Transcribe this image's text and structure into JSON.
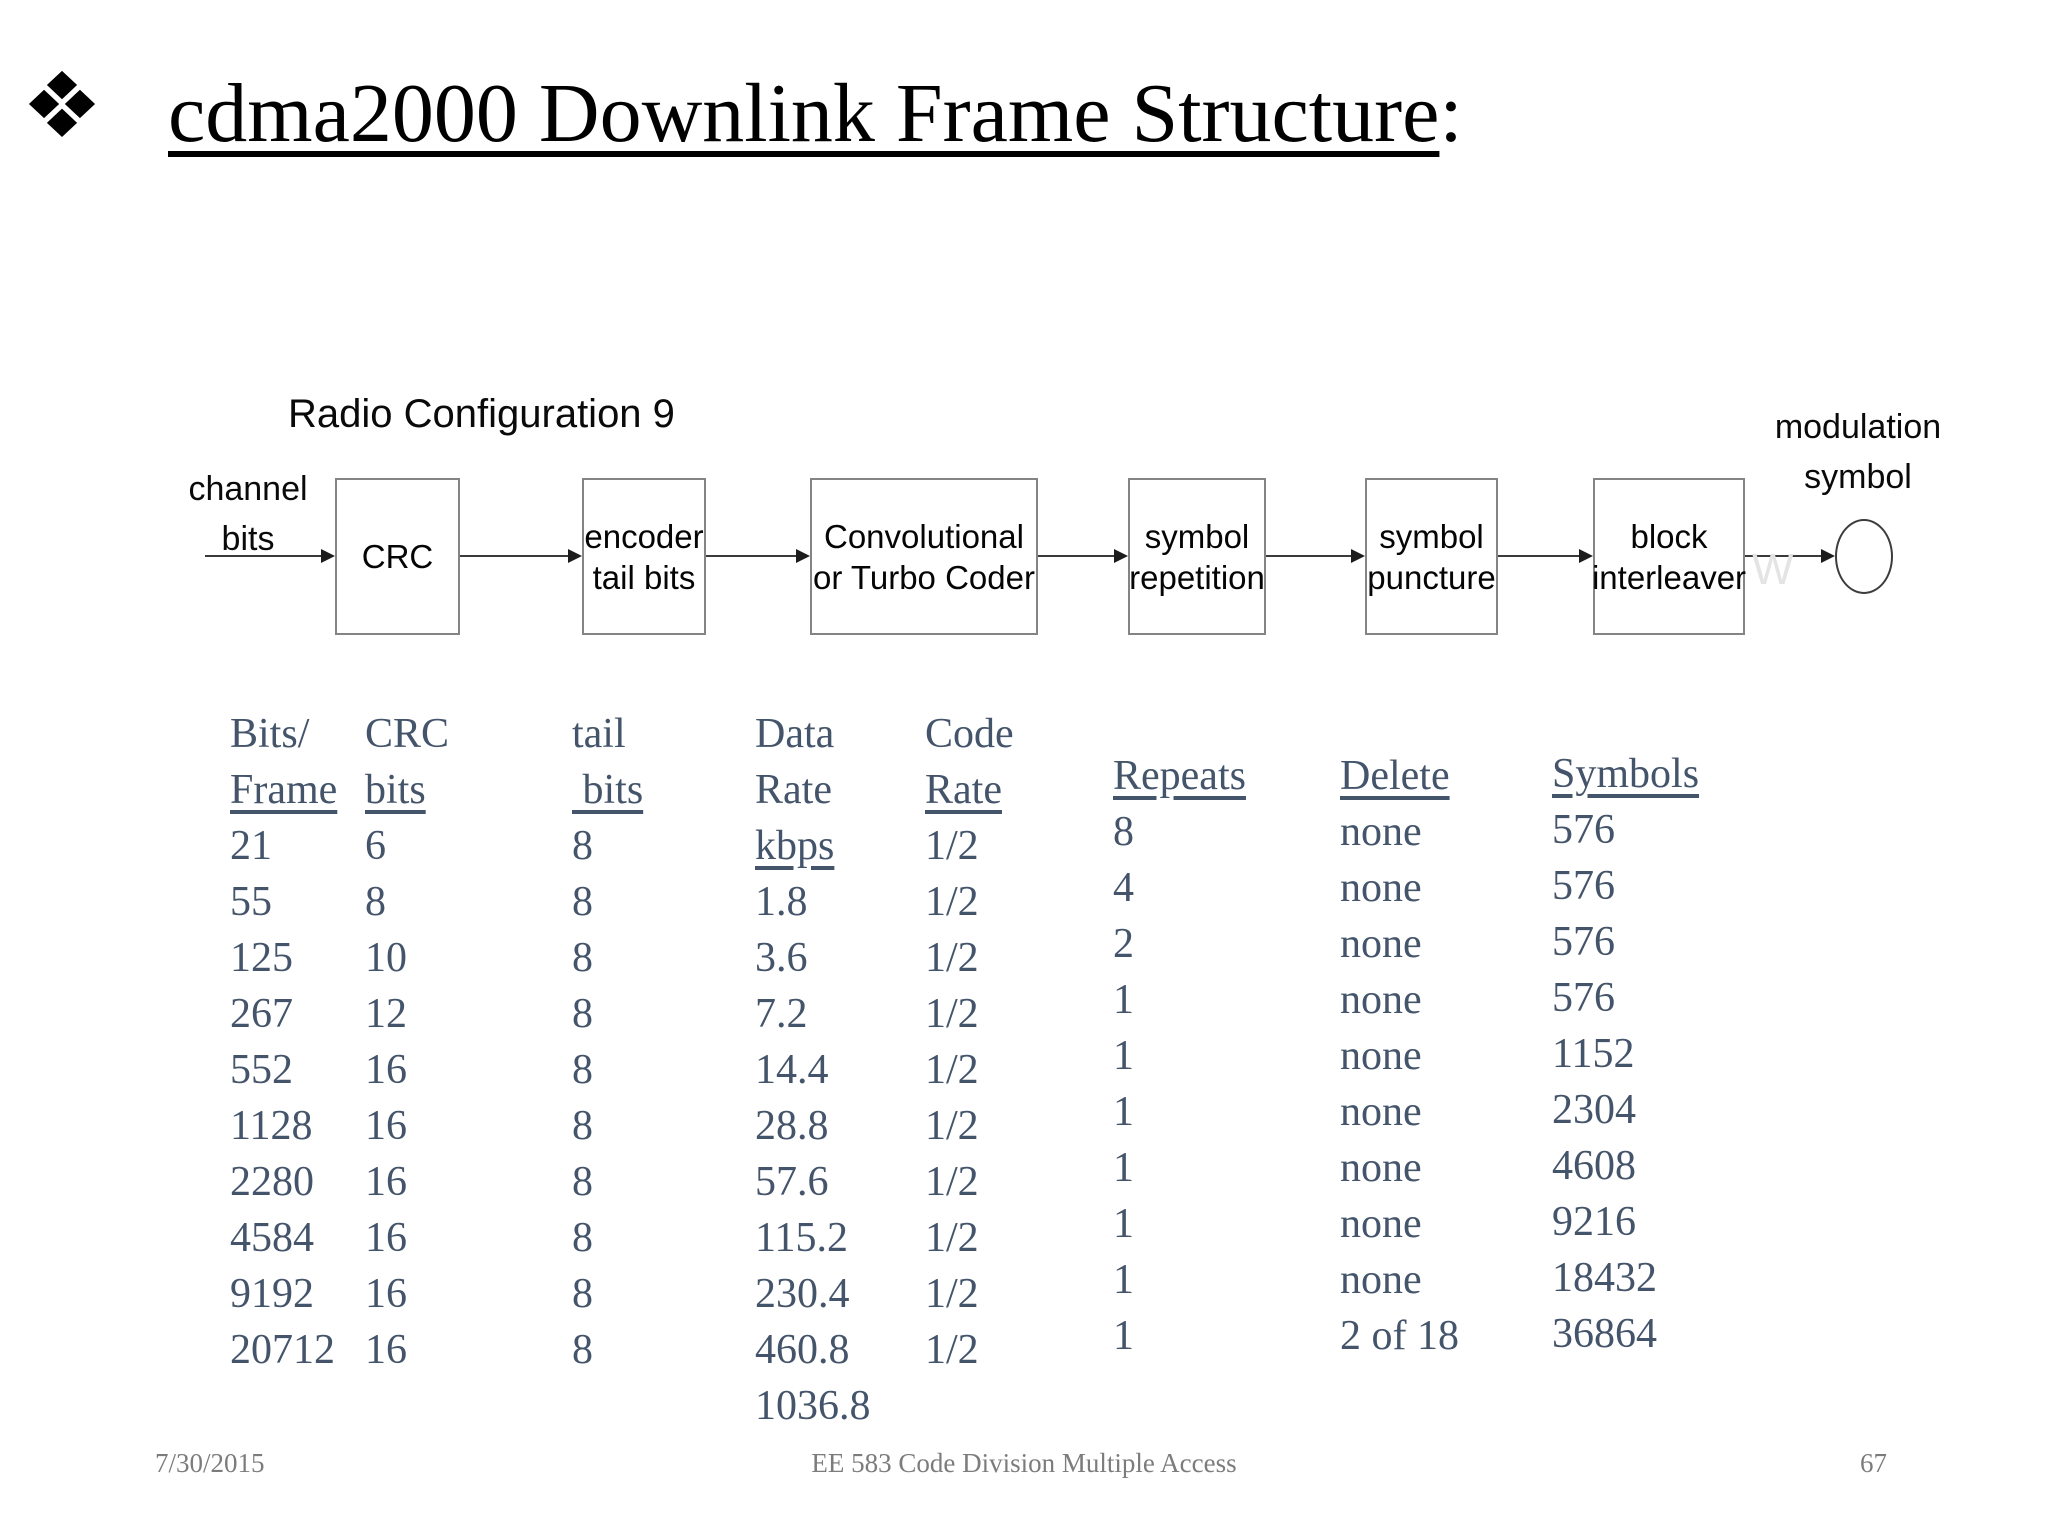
{
  "title": {
    "text": "cdma2000 Downlink Frame Structure",
    "colon": ":"
  },
  "diagram": {
    "config_label": "Radio Configuration 9",
    "input_label": "channel\nbits",
    "output_label": "modulation\nsymbol",
    "watermark": "W",
    "boxes": [
      {
        "label": "CRC"
      },
      {
        "label": "encoder\ntail bits"
      },
      {
        "label": "Convolutional\nor Turbo Coder"
      },
      {
        "label": "symbol\nrepetition"
      },
      {
        "label": "symbol\npuncture"
      },
      {
        "label": "block\ninterleaver"
      }
    ]
  },
  "table": {
    "columns": [
      {
        "id": "bits-per-frame",
        "header": [
          {
            "text": "Bits/",
            "u": false
          },
          {
            "text": "Frame",
            "u": true
          }
        ],
        "values": [
          "21",
          "55",
          "125",
          "267",
          "552",
          "1128",
          "2280",
          "4584",
          "9192",
          "20712"
        ]
      },
      {
        "id": "crc-bits",
        "header": [
          {
            "text": "CRC",
            "u": false
          },
          {
            "text": "bits",
            "u": true
          }
        ],
        "values": [
          "6",
          "8",
          "10",
          "12",
          "16",
          "16",
          "16",
          "16",
          "16",
          "16"
        ]
      },
      {
        "id": "tail-bits",
        "header": [
          {
            "text": "tail",
            "u": false
          },
          {
            "text": " bits",
            "u": true
          }
        ],
        "values": [
          "8",
          "8",
          "8",
          "8",
          "8",
          "8",
          "8",
          "8",
          "8",
          "8"
        ]
      },
      {
        "id": "data-rate",
        "header": [
          {
            "text": "Data",
            "u": false
          },
          {
            "text": "Rate",
            "u": false
          },
          {
            "text": "kbps",
            "u": true
          }
        ],
        "values": [
          "1.8",
          "3.6",
          "7.2",
          "14.4",
          "28.8",
          "57.6",
          "115.2",
          "230.4",
          "460.8",
          "1036.8"
        ]
      },
      {
        "id": "code-rate",
        "header": [
          {
            "text": "Code",
            "u": false
          },
          {
            "text": "Rate",
            "u": true
          }
        ],
        "values": [
          "1/2",
          "1/2",
          "1/2",
          "1/2",
          "1/2",
          "1/2",
          "1/2",
          "1/2",
          "1/2",
          "1/2"
        ]
      },
      {
        "id": "repeats",
        "header": [
          {
            "text": "Repeats",
            "u": true
          }
        ],
        "values": [
          "8",
          "4",
          "2",
          "1",
          "1",
          "1",
          "1",
          "1",
          "1",
          "1"
        ]
      },
      {
        "id": "delete",
        "header": [
          {
            "text": "Delete",
            "u": true
          }
        ],
        "values": [
          "none",
          "none",
          "none",
          "none",
          "none",
          "none",
          "none",
          "none",
          "none",
          "2 of 18"
        ]
      },
      {
        "id": "symbols",
        "header": [
          {
            "text": "Symbols",
            "u": true
          }
        ],
        "values": [
          "576",
          "576",
          "576",
          "576",
          "1152",
          "2304",
          "4608",
          "9216",
          "18432",
          "36864"
        ]
      }
    ]
  },
  "footer": {
    "date": "7/30/2015",
    "center": "EE 583 Code Division Multiple Access",
    "page": "67"
  },
  "colors": {
    "table_text": "#44546a",
    "footer_text": "#7c7c7c",
    "diagram_border": "#848484",
    "arrow": "#3a3a3a",
    "watermark": "#e4e4e4",
    "title_text": "#000000"
  }
}
